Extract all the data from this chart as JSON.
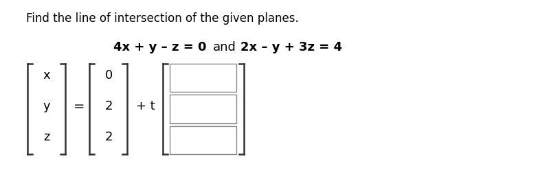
{
  "title": "Find the line of intersection of the given planes.",
  "eq1": "4x + y – z = 0",
  "eq2": "2x – y + 3z = 4",
  "and_text": "and",
  "vec_vars": [
    "x",
    "y",
    "z"
  ],
  "vec_vals": [
    "0",
    "2",
    "2"
  ],
  "equals": "=",
  "plus_t": "+ t",
  "bg_color": "#ffffff",
  "text_color": "#000000",
  "title_fontsize": 12,
  "eq_fontsize": 13,
  "matrix_fontsize": 13
}
